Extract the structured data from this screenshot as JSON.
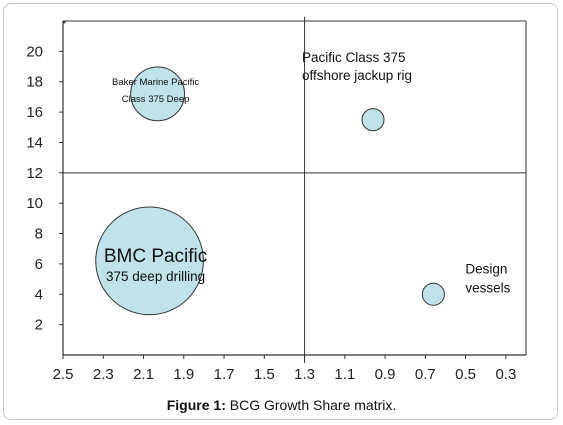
{
  "figure": {
    "caption_prefix": "Figure 1:",
    "caption_text": "BCG Growth Share matrix."
  },
  "chart_data": {
    "type": "scatter",
    "subtype": "bubble",
    "xlim": [
      2.5,
      0.2
    ],
    "ylim": [
      0,
      22
    ],
    "x_reversed": true,
    "x_ticks": [
      "2.5",
      "2.3",
      "2.1",
      "1.9",
      "1.7",
      "1.5",
      "1.3",
      "1.1",
      "0.9",
      "0.7",
      "0.5",
      "0.3"
    ],
    "x_tick_values": [
      2.5,
      2.3,
      2.1,
      1.9,
      1.7,
      1.5,
      1.3,
      1.1,
      0.9,
      0.7,
      0.5,
      0.3
    ],
    "y_ticks": [
      "2",
      "4",
      "6",
      "8",
      "10",
      "12",
      "14",
      "16",
      "18",
      "20"
    ],
    "y_tick_values": [
      2,
      4,
      6,
      8,
      10,
      12,
      14,
      16,
      18,
      20
    ],
    "quadrant_divider_x": 1.3,
    "quadrant_divider_y": 12,
    "bubble_color": "#bfe3e8",
    "bubble_stroke": "#333333",
    "points": [
      {
        "x": 2.03,
        "y": 17.2,
        "size": 3.9,
        "lines": [
          "Baker Marine Pacific",
          "Class 375 Deep"
        ],
        "label_style": "inside-small"
      },
      {
        "x": 0.96,
        "y": 15.5,
        "size": 1.6,
        "lines": [
          "Pacific Class 375",
          "offshore jackup rig"
        ],
        "label_style": "above-left"
      },
      {
        "x": 2.07,
        "y": 6.2,
        "size": 7.8,
        "lines": [
          "BMC Pacific",
          "375 deep drilling"
        ],
        "label_style": "inside-large"
      },
      {
        "x": 0.66,
        "y": 4.0,
        "size": 1.6,
        "lines": [
          "Design",
          "vessels"
        ],
        "label_style": "right"
      }
    ]
  }
}
